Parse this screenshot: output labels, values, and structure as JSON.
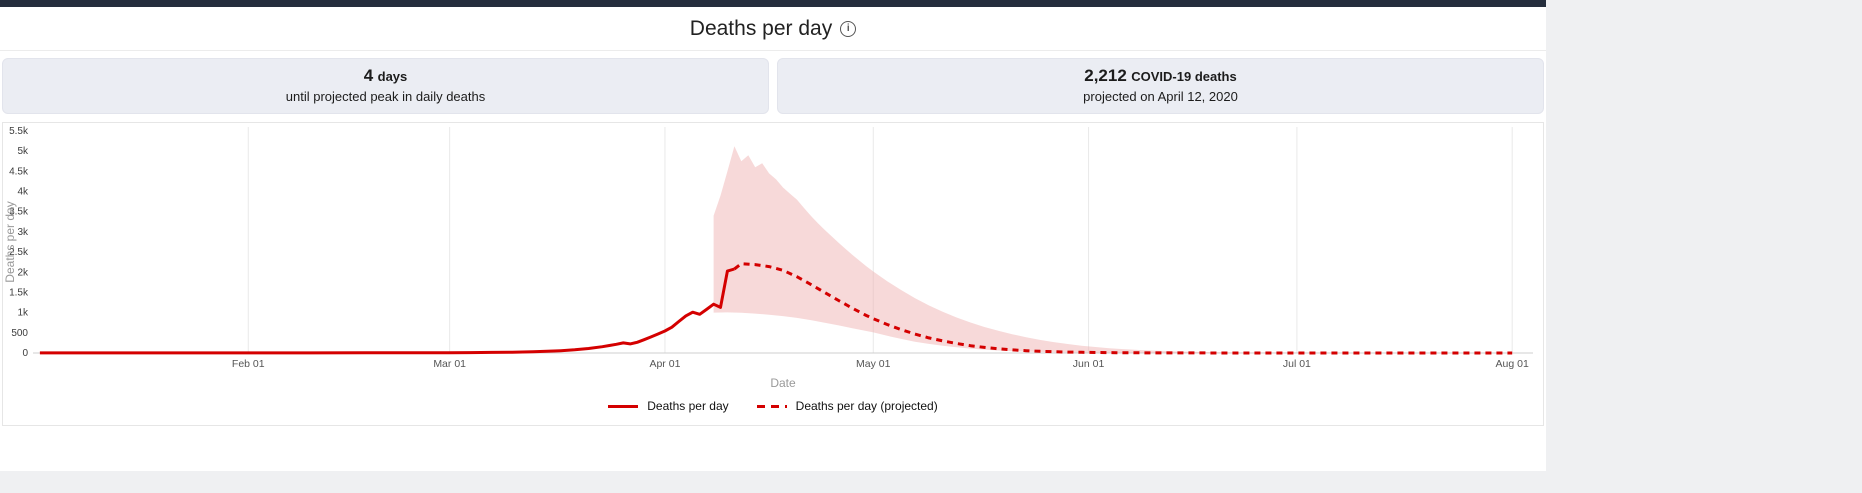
{
  "header": {
    "title": "Deaths per day",
    "info_glyph": "i"
  },
  "stats": [
    {
      "value": "4",
      "unit": "days",
      "caption": "until projected peak in daily deaths"
    },
    {
      "value": "2,212",
      "unit": "COVID-19 deaths",
      "caption": "projected on April 12, 2020"
    }
  ],
  "legend": {
    "items": [
      {
        "label": "Deaths per day",
        "style": "solid"
      },
      {
        "label": "Deaths per day (projected)",
        "style": "dashed"
      }
    ]
  },
  "colors": {
    "accent_red": "#d40000",
    "band_pink": "#eeaaaa",
    "topbar": "#252e3d",
    "page_bg": "#eff0f2",
    "statbox_bg": "#ebedf3"
  },
  "chart_data": {
    "type": "line",
    "title": "Deaths per day",
    "xlabel": "Date",
    "ylabel": "Deaths per day",
    "x_domain": [
      0,
      216
    ],
    "ylim": [
      0,
      5500
    ],
    "grid": "vertical-month-lines",
    "legend_position": "bottom-center",
    "xticks": [
      {
        "day": 31,
        "label": "Feb 01"
      },
      {
        "day": 60,
        "label": "Mar 01"
      },
      {
        "day": 91,
        "label": "Apr 01"
      },
      {
        "day": 121,
        "label": "May 01"
      },
      {
        "day": 152,
        "label": "Jun 01"
      },
      {
        "day": 182,
        "label": "Jul 01"
      },
      {
        "day": 213,
        "label": "Aug 01"
      }
    ],
    "yticks": [
      {
        "v": 0,
        "label": "0"
      },
      {
        "v": 500,
        "label": "500"
      },
      {
        "v": 1000,
        "label": "1k"
      },
      {
        "v": 1500,
        "label": "1.5k"
      },
      {
        "v": 2000,
        "label": "2k"
      },
      {
        "v": 2500,
        "label": "2.5k"
      },
      {
        "v": 3000,
        "label": "3k"
      },
      {
        "v": 3500,
        "label": "3.5k"
      },
      {
        "v": 4000,
        "label": "4k"
      },
      {
        "v": 4500,
        "label": "4.5k"
      },
      {
        "v": 5000,
        "label": "5k"
      },
      {
        "v": 5500,
        "label": "5.5k"
      }
    ],
    "series": [
      {
        "name": "Deaths per day",
        "style": "solid",
        "color": "#d40000",
        "points": [
          [
            1,
            2
          ],
          [
            10,
            2
          ],
          [
            20,
            2
          ],
          [
            31,
            3
          ],
          [
            40,
            3
          ],
          [
            48,
            4
          ],
          [
            55,
            5
          ],
          [
            60,
            7
          ],
          [
            63,
            10
          ],
          [
            66,
            14
          ],
          [
            69,
            20
          ],
          [
            72,
            30
          ],
          [
            74,
            42
          ],
          [
            76,
            58
          ],
          [
            78,
            80
          ],
          [
            80,
            112
          ],
          [
            82,
            155
          ],
          [
            83,
            185
          ],
          [
            84,
            215
          ],
          [
            85,
            250
          ],
          [
            86,
            225
          ],
          [
            87,
            265
          ],
          [
            88,
            330
          ],
          [
            89,
            400
          ],
          [
            90,
            470
          ],
          [
            91,
            545
          ],
          [
            92,
            640
          ],
          [
            93,
            780
          ],
          [
            94,
            920
          ],
          [
            95,
            1010
          ],
          [
            96,
            960
          ],
          [
            97,
            1080
          ],
          [
            98,
            1210
          ],
          [
            99,
            1130
          ],
          [
            100,
            2030
          ],
          [
            101,
            2080
          ]
        ]
      },
      {
        "name": "Deaths per day (projected)",
        "style": "dashed",
        "color": "#d40000",
        "points": [
          [
            101,
            2080
          ],
          [
            102,
            2212
          ],
          [
            104,
            2190
          ],
          [
            106,
            2140
          ],
          [
            108,
            2050
          ],
          [
            110,
            1890
          ],
          [
            112,
            1700
          ],
          [
            114,
            1500
          ],
          [
            116,
            1300
          ],
          [
            118,
            1110
          ],
          [
            120,
            930
          ],
          [
            121,
            850
          ],
          [
            123,
            705
          ],
          [
            125,
            580
          ],
          [
            127,
            470
          ],
          [
            129,
            375
          ],
          [
            131,
            300
          ],
          [
            133,
            235
          ],
          [
            135,
            180
          ],
          [
            137,
            138
          ],
          [
            139,
            104
          ],
          [
            141,
            78
          ],
          [
            143,
            58
          ],
          [
            145,
            43
          ],
          [
            147,
            32
          ],
          [
            149,
            23
          ],
          [
            151,
            17
          ],
          [
            153,
            12
          ],
          [
            156,
            8
          ],
          [
            159,
            5
          ],
          [
            163,
            3
          ],
          [
            167,
            2
          ],
          [
            172,
            1
          ],
          [
            178,
            1
          ],
          [
            185,
            1
          ],
          [
            195,
            1
          ],
          [
            205,
            1
          ],
          [
            213,
            1
          ]
        ]
      }
    ],
    "band": {
      "color": "#eeaaaa",
      "opacity": 0.45,
      "upper": [
        [
          98,
          3400
        ],
        [
          99,
          3900
        ],
        [
          100,
          4500
        ],
        [
          101,
          5120
        ],
        [
          102,
          4750
        ],
        [
          103,
          4900
        ],
        [
          104,
          4600
        ],
        [
          105,
          4700
        ],
        [
          106,
          4450
        ],
        [
          107,
          4300
        ],
        [
          108,
          4100
        ],
        [
          109,
          3950
        ],
        [
          110,
          3800
        ],
        [
          111,
          3600
        ],
        [
          112,
          3400
        ],
        [
          113,
          3220
        ],
        [
          114,
          3050
        ],
        [
          115,
          2890
        ],
        [
          116,
          2730
        ],
        [
          117,
          2580
        ],
        [
          118,
          2430
        ],
        [
          119,
          2290
        ],
        [
          120,
          2150
        ],
        [
          121,
          2020
        ],
        [
          123,
          1780
        ],
        [
          125,
          1560
        ],
        [
          127,
          1360
        ],
        [
          129,
          1180
        ],
        [
          131,
          1020
        ],
        [
          133,
          880
        ],
        [
          135,
          755
        ],
        [
          137,
          645
        ],
        [
          139,
          550
        ],
        [
          141,
          465
        ],
        [
          143,
          390
        ],
        [
          145,
          325
        ],
        [
          147,
          270
        ],
        [
          149,
          222
        ],
        [
          151,
          182
        ],
        [
          153,
          148
        ],
        [
          155,
          120
        ],
        [
          157,
          97
        ],
        [
          159,
          78
        ],
        [
          161,
          62
        ],
        [
          163,
          49
        ],
        [
          165,
          38
        ],
        [
          167,
          30
        ],
        [
          170,
          20
        ],
        [
          173,
          13
        ],
        [
          176,
          8
        ],
        [
          180,
          5
        ],
        [
          185,
          3
        ],
        [
          190,
          1
        ],
        [
          200,
          0
        ],
        [
          213,
          0
        ]
      ],
      "lower": [
        [
          98,
          1000
        ],
        [
          100,
          1005
        ],
        [
          102,
          995
        ],
        [
          104,
          975
        ],
        [
          106,
          950
        ],
        [
          108,
          915
        ],
        [
          110,
          870
        ],
        [
          112,
          815
        ],
        [
          114,
          750
        ],
        [
          116,
          685
        ],
        [
          118,
          615
        ],
        [
          120,
          545
        ],
        [
          121,
          510
        ],
        [
          123,
          425
        ],
        [
          125,
          350
        ],
        [
          127,
          280
        ],
        [
          129,
          225
        ],
        [
          131,
          180
        ],
        [
          133,
          140
        ],
        [
          135,
          108
        ],
        [
          137,
          83
        ],
        [
          139,
          62
        ],
        [
          141,
          47
        ],
        [
          143,
          35
        ],
        [
          145,
          26
        ],
        [
          147,
          19
        ],
        [
          149,
          14
        ],
        [
          151,
          10
        ],
        [
          153,
          7
        ],
        [
          156,
          5
        ],
        [
          159,
          3
        ],
        [
          163,
          2
        ],
        [
          167,
          1
        ],
        [
          172,
          0
        ],
        [
          213,
          0
        ]
      ]
    }
  }
}
